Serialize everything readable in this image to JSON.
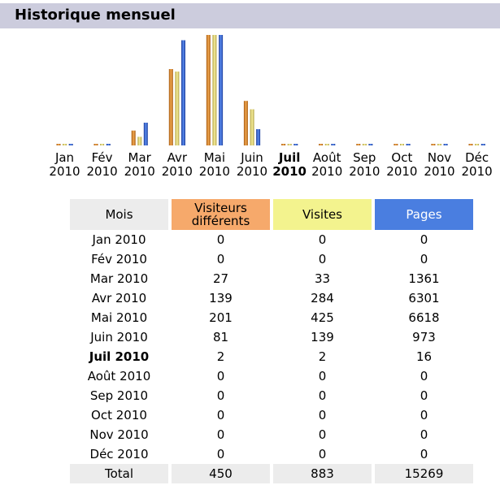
{
  "header": {
    "title": "Historique mensuel"
  },
  "colors": {
    "visitors": "#e08a2a",
    "visits": "#e8dc7a",
    "pages": "#2f5fcf"
  },
  "chart_data": {
    "type": "bar",
    "title": "Historique mensuel",
    "categories": [
      "Jan 2010",
      "Fév 2010",
      "Mar 2010",
      "Avr 2010",
      "Mai 2010",
      "Juin 2010",
      "Juil 2010",
      "Août 2010",
      "Sep 2010",
      "Oct 2010",
      "Nov 2010",
      "Déc 2010"
    ],
    "axis_labels": [
      {
        "month": "Jan",
        "year": "2010"
      },
      {
        "month": "Fév",
        "year": "2010"
      },
      {
        "month": "Mar",
        "year": "2010"
      },
      {
        "month": "Avr",
        "year": "2010"
      },
      {
        "month": "Mai",
        "year": "2010"
      },
      {
        "month": "Juin",
        "year": "2010"
      },
      {
        "month": "Juil",
        "year": "2010"
      },
      {
        "month": "Août",
        "year": "2010"
      },
      {
        "month": "Sep",
        "year": "2010"
      },
      {
        "month": "Oct",
        "year": "2010"
      },
      {
        "month": "Nov",
        "year": "2010"
      },
      {
        "month": "Déc",
        "year": "2010"
      }
    ],
    "current_month": "Juil 2010",
    "series": [
      {
        "name": "Visiteurs différents",
        "values": [
          0,
          0,
          27,
          139,
          201,
          81,
          2,
          0,
          0,
          0,
          0,
          0
        ]
      },
      {
        "name": "Visites",
        "values": [
          0,
          0,
          33,
          284,
          425,
          139,
          2,
          0,
          0,
          0,
          0,
          0
        ]
      },
      {
        "name": "Pages",
        "values": [
          0,
          0,
          1361,
          6301,
          6618,
          973,
          16,
          0,
          0,
          0,
          0,
          0
        ]
      }
    ],
    "grid": false
  },
  "table": {
    "headers": [
      "Mois",
      "Visiteurs\ndifférents",
      "Visites",
      "Pages"
    ],
    "rows": [
      [
        "Jan 2010",
        "0",
        "0",
        "0"
      ],
      [
        "Fév 2010",
        "0",
        "0",
        "0"
      ],
      [
        "Mar 2010",
        "27",
        "33",
        "1361"
      ],
      [
        "Avr 2010",
        "139",
        "284",
        "6301"
      ],
      [
        "Mai 2010",
        "201",
        "425",
        "6618"
      ],
      [
        "Juin 2010",
        "81",
        "139",
        "973"
      ],
      [
        "Juil 2010",
        "2",
        "2",
        "16"
      ],
      [
        "Août 2010",
        "0",
        "0",
        "0"
      ],
      [
        "Sep 2010",
        "0",
        "0",
        "0"
      ],
      [
        "Oct 2010",
        "0",
        "0",
        "0"
      ],
      [
        "Nov 2010",
        "0",
        "0",
        "0"
      ],
      [
        "Déc 2010",
        "0",
        "0",
        "0"
      ]
    ],
    "total": [
      "Total",
      "450",
      "883",
      "15269"
    ]
  }
}
